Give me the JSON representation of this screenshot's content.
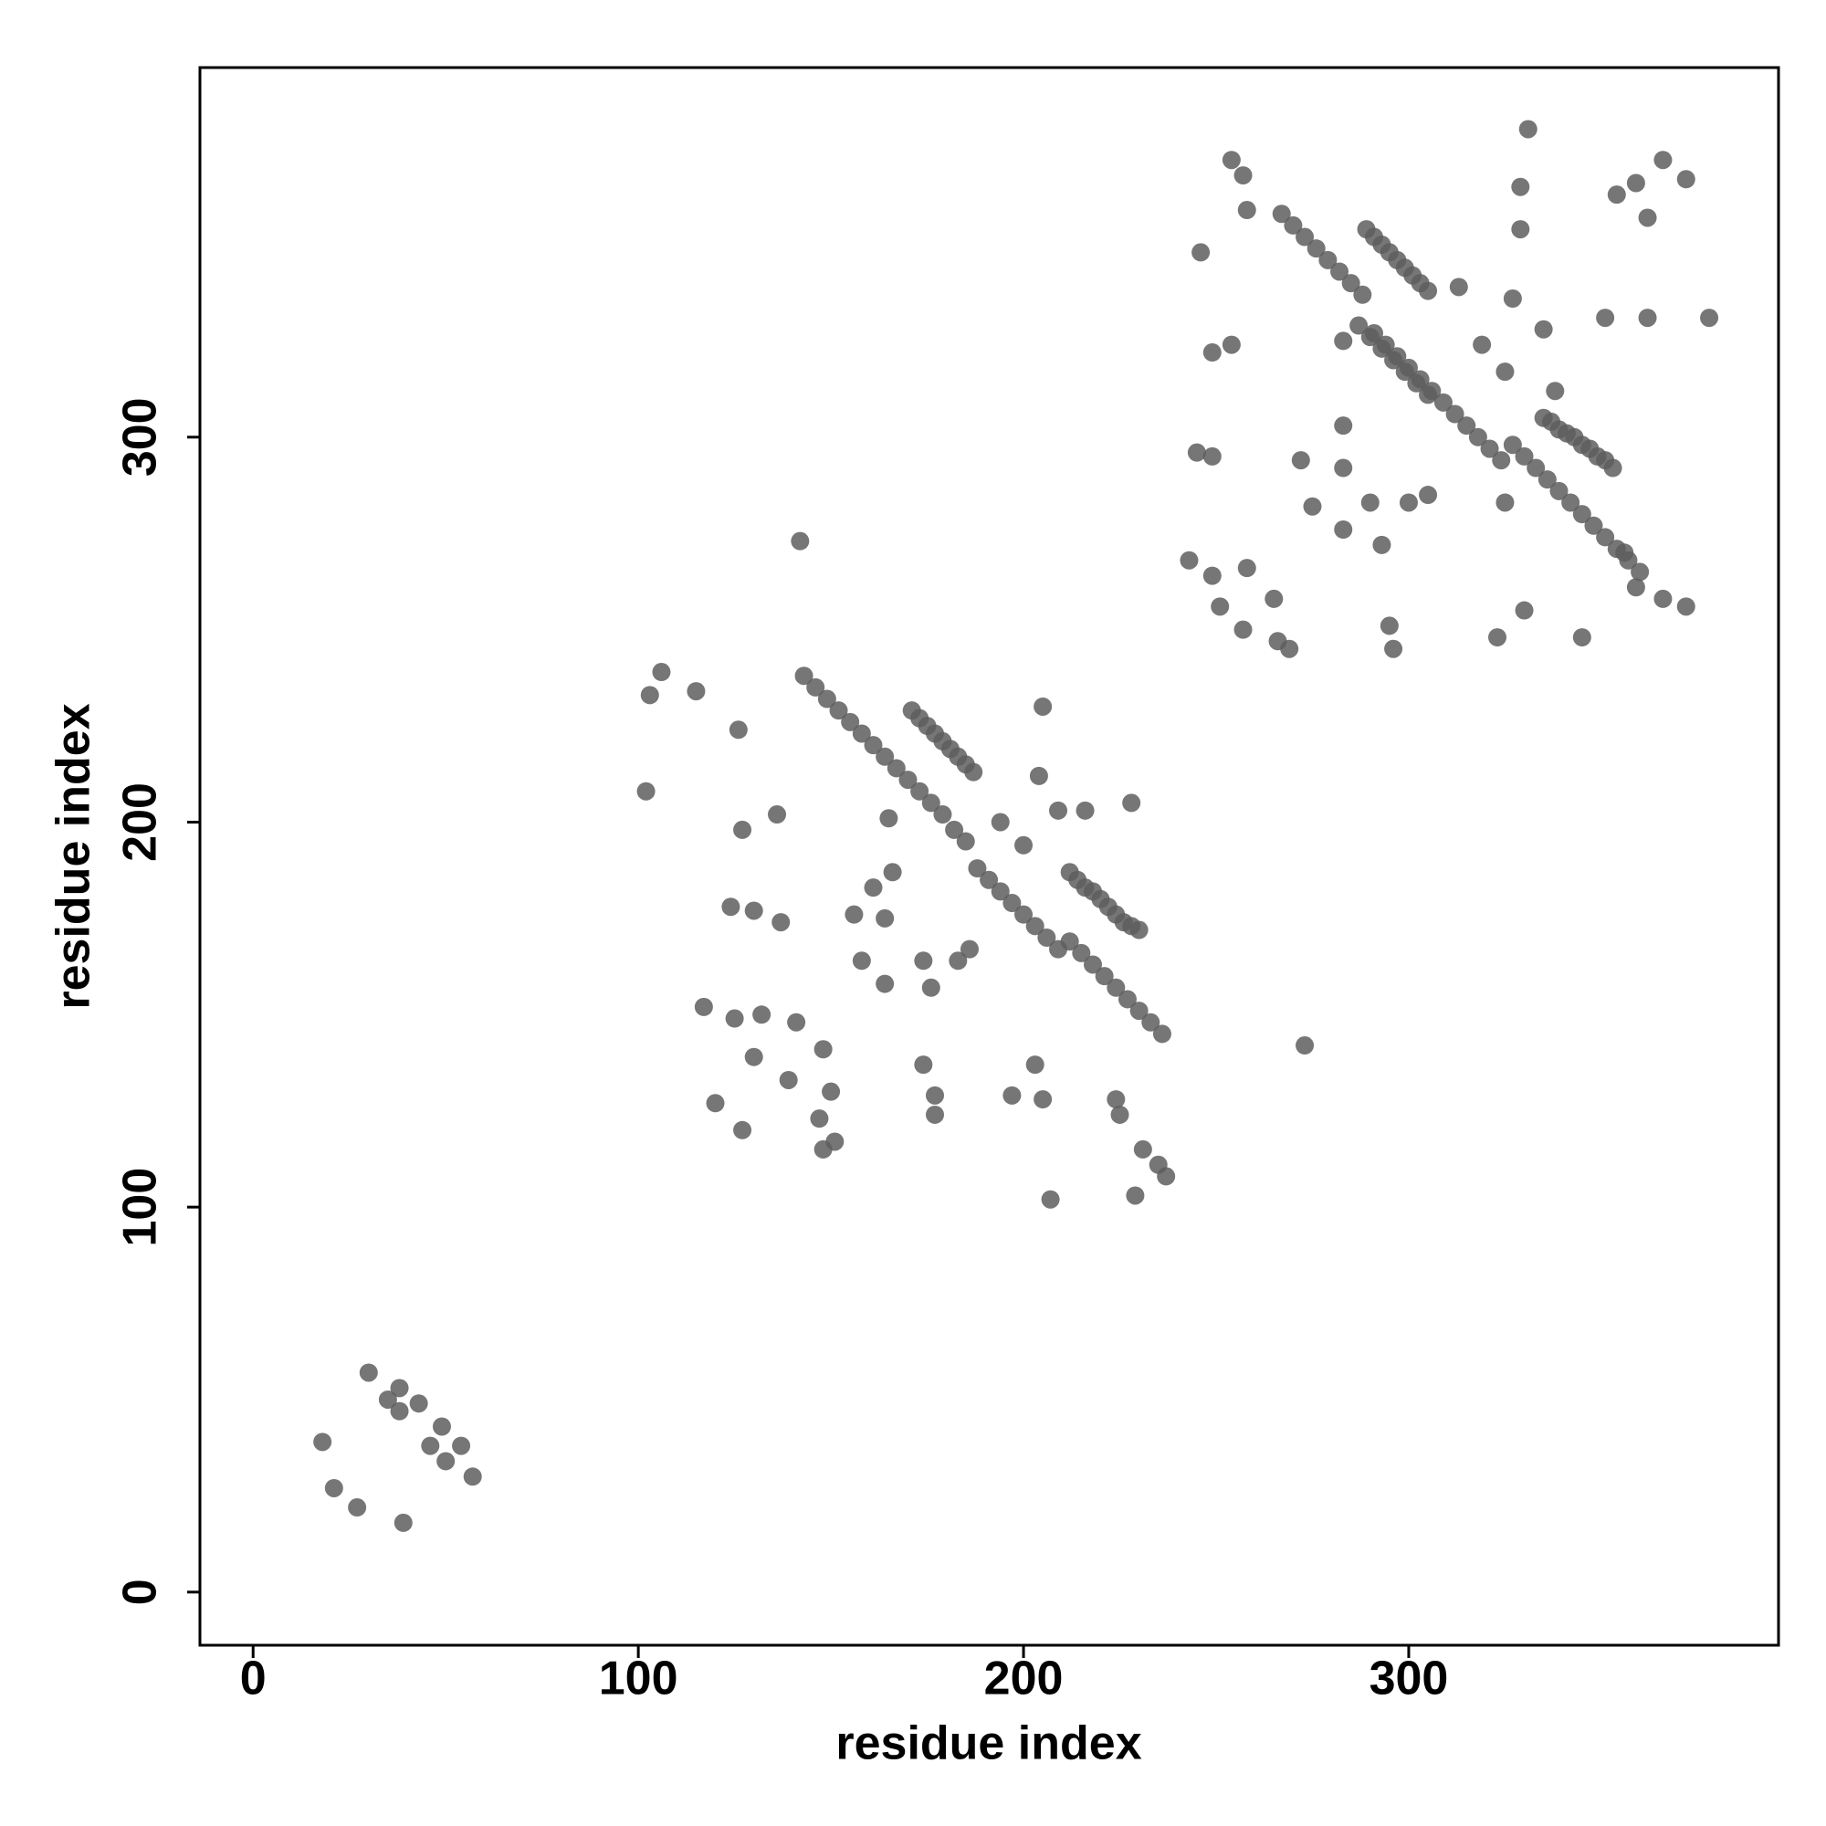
{
  "chart_data": {
    "type": "scatter",
    "x_label": "residue index",
    "y_label": "residue index",
    "xlim": [
      -13.8,
      396
    ],
    "ylim": [
      -13.8,
      396
    ],
    "xticks": [
      0,
      100,
      200,
      300
    ],
    "yticks": [
      0,
      100,
      200,
      300
    ],
    "grid": false,
    "color": "#5e5e5e",
    "series": [
      {
        "name": null,
        "color": "#5e5e5e",
        "x": [
          18,
          21,
          27,
          30,
          35,
          38,
          43,
          38,
          39,
          46,
          49,
          50,
          54,
          57,
          143,
          146,
          149,
          152,
          155,
          158,
          161,
          164,
          167,
          170,
          173,
          176,
          179,
          182,
          185,
          188,
          191,
          194,
          197,
          200,
          203,
          206,
          209,
          212,
          215,
          218,
          221,
          224,
          227,
          230,
          233,
          236,
          171,
          173,
          175,
          177,
          179,
          181,
          183,
          185,
          187,
          212,
          214,
          216,
          218,
          220,
          222,
          224,
          226,
          228,
          230,
          267,
          270,
          273,
          276,
          279,
          282,
          285,
          288,
          291,
          294,
          297,
          300,
          303,
          306,
          309,
          312,
          315,
          318,
          321,
          324,
          327,
          330,
          333,
          336,
          339,
          342,
          345,
          348,
          351,
          354,
          357,
          360,
          289,
          291,
          293,
          295,
          297,
          299,
          301,
          303,
          305,
          287,
          290,
          293,
          296,
          299,
          302,
          305,
          335,
          337,
          339,
          341,
          343,
          345,
          347,
          349,
          351,
          353,
          103,
          106,
          115,
          102,
          126,
          127,
          136,
          124,
          130,
          137,
          117,
          125,
          132,
          141,
          130,
          139,
          148,
          150,
          147,
          151,
          148,
          120,
          127,
          142,
          156,
          158,
          164,
          164,
          161,
          166,
          165,
          174,
          177,
          177,
          176,
          174,
          183,
          186,
          194,
          200,
          197,
          203,
          205,
          207,
          205,
          204,
          209,
          216,
          228,
          224,
          225,
          231,
          235,
          237,
          229,
          273,
          246,
          249,
          254,
          249,
          245,
          243,
          249,
          251,
          257,
          265,
          266,
          269,
          258,
          254,
          257,
          258,
          272,
          275,
          283,
          283,
          283,
          283,
          290,
          293,
          295,
          296,
          300,
          305,
          313,
          319,
          325,
          327,
          325,
          323,
          330,
          331,
          329,
          329,
          335,
          338,
          345,
          351,
          354,
          359,
          362,
          366,
          372,
          362,
          372,
          366,
          378,
          356,
          359
        ],
        "y": [
          39,
          27,
          22,
          57,
          50,
          53,
          49,
          47,
          18,
          38,
          43,
          34,
          38,
          30,
          238,
          235,
          232,
          229,
          226,
          223,
          220,
          217,
          214,
          211,
          208,
          205,
          202,
          198,
          195,
          188,
          185,
          182,
          179,
          176,
          173,
          170,
          167,
          169,
          166,
          163,
          160,
          157,
          154,
          151,
          148,
          145,
          229,
          227,
          225,
          223,
          221,
          219,
          217,
          215,
          213,
          187,
          185,
          183,
          182,
          180,
          178,
          176,
          174,
          173,
          172,
          358,
          355,
          352,
          349,
          346,
          343,
          340,
          337,
          327,
          324,
          321,
          318,
          315,
          312,
          309,
          306,
          303,
          300,
          297,
          294,
          298,
          295,
          292,
          289,
          286,
          283,
          280,
          277,
          274,
          271,
          268,
          265,
          354,
          352,
          350,
          348,
          346,
          344,
          342,
          340,
          338,
          329,
          326,
          323,
          320,
          317,
          314,
          311,
          305,
          304,
          302,
          301,
          300,
          298,
          297,
          295,
          294,
          292,
          233,
          239,
          234,
          208,
          224,
          198,
          202,
          178,
          177,
          174,
          152,
          149,
          150,
          148,
          139,
          133,
          141,
          130,
          123,
          117,
          115,
          127,
          120,
          273,
          176,
          164,
          158,
          175,
          183,
          187,
          201,
          137,
          129,
          124,
          157,
          164,
          164,
          167,
          200,
          194,
          129,
          137,
          128,
          102,
          230,
          212,
          203,
          203,
          205,
          128,
          124,
          115,
          111,
          108,
          103,
          142,
          348,
          322,
          324,
          295,
          296,
          268,
          264,
          256,
          250,
          258,
          247,
          245,
          266,
          372,
          368,
          359,
          294,
          282,
          303,
          292,
          276,
          325,
          283,
          272,
          251,
          245,
          283,
          285,
          339,
          324,
          317,
          336,
          283,
          248,
          255,
          380,
          365,
          354,
          328,
          312,
          248,
          331,
          363,
          366,
          357,
          372,
          367,
          331,
          256,
          258,
          331,
          270,
          261
        ]
      }
    ]
  }
}
